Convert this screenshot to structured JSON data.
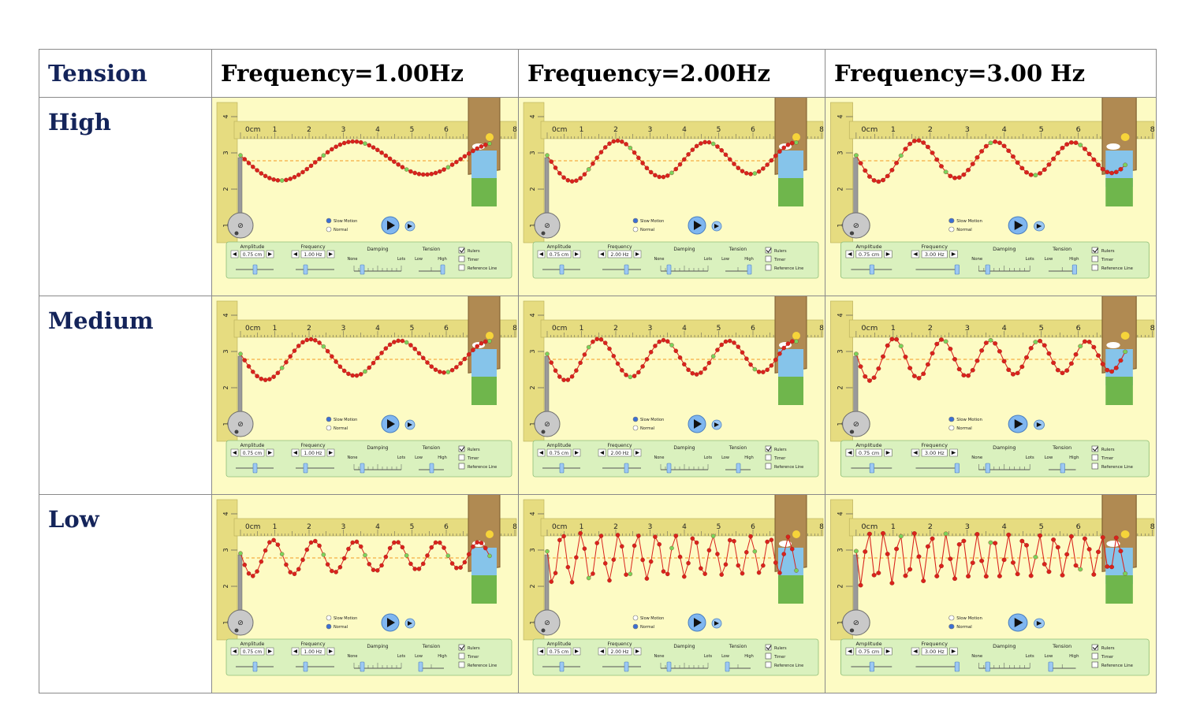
{
  "header": {
    "tension": "Tension",
    "freq1": "Frequency=1.00Hz",
    "freq2": "Frequency=2.00Hz",
    "freq3": "Frequency=3.00 Hz"
  },
  "rows": [
    {
      "label": "High",
      "cells": [
        {
          "frequency": 1,
          "tension": "high",
          "wavelength_cm": 4.2,
          "amplitude_scale": 1.0,
          "mode": "slow"
        },
        {
          "frequency": 2,
          "tension": "high",
          "wavelength_cm": 2.6,
          "amplitude_scale": 1.0,
          "mode": "slow"
        },
        {
          "frequency": 3,
          "tension": "high",
          "wavelength_cm": 2.1,
          "amplitude_scale": 1.0,
          "mode": "slow"
        }
      ]
    },
    {
      "label": "Medium",
      "cells": [
        {
          "frequency": 1,
          "tension": "medium",
          "wavelength_cm": 2.6,
          "amplitude_scale": 1.0,
          "mode": "slow"
        },
        {
          "frequency": 2,
          "tension": "medium",
          "wavelength_cm": 1.9,
          "amplitude_scale": 1.0,
          "mode": "slow"
        },
        {
          "frequency": 3,
          "tension": "medium",
          "wavelength_cm": 1.3,
          "amplitude_scale": 1.0,
          "mode": "slow"
        }
      ]
    },
    {
      "label": "Low",
      "cells": [
        {
          "frequency": 1,
          "tension": "low",
          "wavelength_cm": 1.2,
          "amplitude_scale": 0.85,
          "mode": "normal"
        },
        {
          "frequency": 2,
          "tension": "low",
          "wavelength_cm": 0.55,
          "amplitude_scale": 1.2,
          "mode": "normal"
        },
        {
          "frequency": 3,
          "tension": "low",
          "wavelength_cm": 0.42,
          "amplitude_scale": 1.25,
          "mode": "normal"
        }
      ]
    }
  ],
  "sim": {
    "unit": "cm",
    "ruler_ticks": [
      "0",
      "1",
      "2",
      "3",
      "4",
      "5",
      "6",
      "8"
    ],
    "vertical_ticks": [
      "4",
      "3",
      "2",
      "1"
    ],
    "slow_motion_label": "Slow Motion",
    "normal_label": "Normal",
    "amplitude_label": "Amplitude",
    "amplitude_value": "0.75 cm",
    "frequency_label": "Frequency",
    "frequency_values": [
      "1.00 Hz",
      "2.00 Hz",
      "3.00 Hz"
    ],
    "damping_label": "Damping",
    "damping_none": "None",
    "damping_lots": "Lots",
    "tension_label": "Tension",
    "tension_low": "Low",
    "tension_high": "High",
    "rulers_label": "Rulers",
    "timer_label": "Timer",
    "reference_label": "Reference Line",
    "colors": {
      "background": "#fdfbc4",
      "ruler": "#e6dc80",
      "control_panel": "#daf1be",
      "bead": "#d9231c",
      "bead_marker": "#7ad35c",
      "reference": "#f39a22",
      "header_text": "#14245a"
    }
  }
}
